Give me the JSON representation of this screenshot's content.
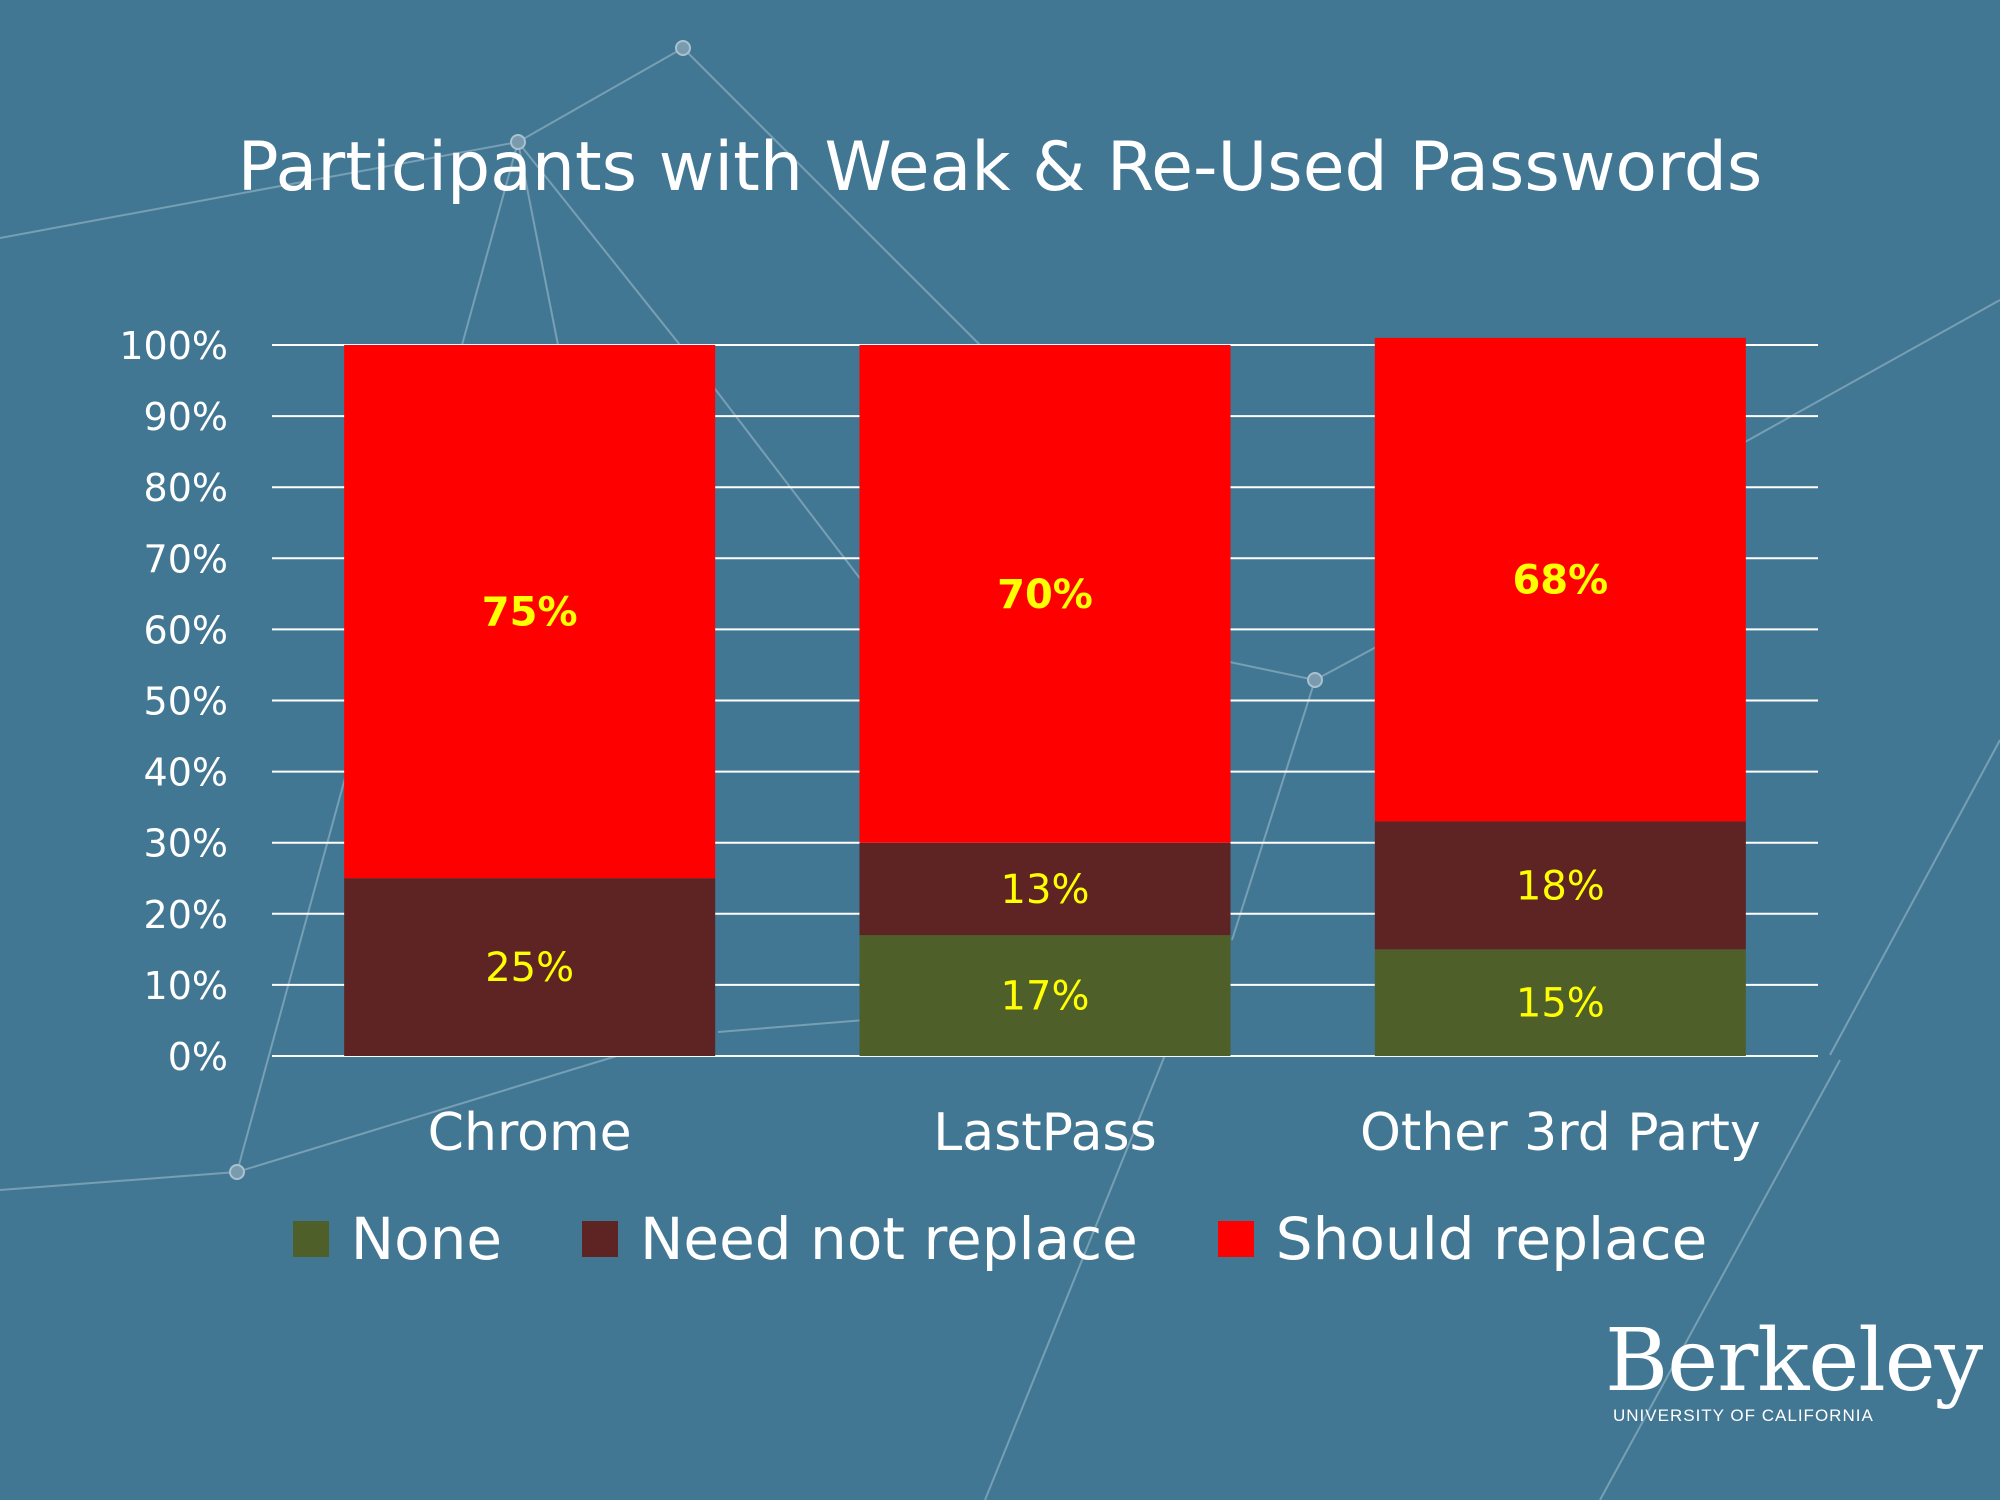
{
  "chart_data": {
    "type": "bar",
    "stacked": true,
    "title": "Participants with Weak & Re-Used Passwords",
    "categories": [
      "Chrome",
      "LastPass",
      "Other 3rd Party"
    ],
    "series": [
      {
        "name": "None",
        "color": "#4e5f2a",
        "values": [
          0,
          17,
          15
        ],
        "labels": [
          "",
          "17%",
          "15%"
        ]
      },
      {
        "name": "Need not replace",
        "color": "#5e2424",
        "values": [
          25,
          13,
          18
        ],
        "labels": [
          "25%",
          "13%",
          "18%"
        ]
      },
      {
        "name": "Should replace",
        "color": "#ff0000",
        "values": [
          75,
          70,
          68
        ],
        "labels": [
          "75%",
          "70%",
          "68%"
        ]
      }
    ],
    "ylim": [
      0,
      100
    ],
    "yticks": [
      "0%",
      "10%",
      "20%",
      "30%",
      "40%",
      "50%",
      "60%",
      "70%",
      "80%",
      "90%",
      "100%"
    ],
    "grid": true,
    "legend_position": "bottom",
    "label_color": "#ffff00"
  },
  "logo": {
    "wordmark": "Berkeley",
    "subtitle": "UNIVERSITY OF CALIFORNIA"
  }
}
